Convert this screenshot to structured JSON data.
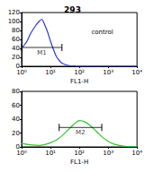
{
  "chart_data": [
    {
      "type": "line",
      "title": "293",
      "log": "x",
      "grid": false,
      "color": "#2a3bd0",
      "x_label": "FL1-H",
      "x": [
        1,
        1.5,
        2,
        3,
        4,
        5,
        6,
        8,
        10,
        13,
        16,
        20,
        25,
        32,
        40,
        50,
        63,
        80,
        100,
        200,
        500,
        1000,
        10000
      ],
      "values": [
        40,
        55,
        72,
        90,
        100,
        105,
        96,
        76,
        56,
        36,
        22,
        13,
        7,
        4,
        2,
        1,
        1,
        0,
        0,
        0,
        0,
        0,
        0
      ],
      "xlim": [
        1,
        10000
      ],
      "xticks": [
        {
          "value": 1,
          "label": "10⁰"
        },
        {
          "value": 10,
          "label": "10¹"
        },
        {
          "value": 100,
          "label": "10²"
        },
        {
          "value": 1000,
          "label": "10³"
        },
        {
          "value": 10000,
          "label": "10⁴"
        }
      ],
      "ylim": [
        0,
        120
      ],
      "yticks": [
        0,
        20,
        40,
        60,
        80,
        100,
        120
      ],
      "gates": [
        {
          "label": "M1",
          "range": [
            1,
            25
          ]
        }
      ],
      "annotations": [
        "control"
      ]
    },
    {
      "type": "line",
      "log": "x",
      "grid": false,
      "color": "#33c233",
      "x_label": "FL1-H",
      "x": [
        1,
        2,
        4,
        6,
        10,
        16,
        25,
        40,
        63,
        100,
        160,
        250,
        400,
        630,
        1000,
        1600,
        2500,
        4000,
        10000
      ],
      "values": [
        5,
        3,
        2,
        3,
        6,
        10,
        16,
        24,
        32,
        38,
        36,
        30,
        22,
        14,
        8,
        4,
        2,
        1,
        0
      ],
      "xlim": [
        1,
        10000
      ],
      "xticks": [
        {
          "value": 1,
          "label": "10⁰"
        },
        {
          "value": 10,
          "label": "10¹"
        },
        {
          "value": 100,
          "label": "10²"
        },
        {
          "value": 1000,
          "label": "10³"
        },
        {
          "value": 10000,
          "label": "10⁴"
        }
      ],
      "ylim": [
        0,
        80
      ],
      "yticks": [
        0,
        20,
        40,
        60,
        80
      ],
      "gates": [
        {
          "label": "M2",
          "range": [
            20,
            600
          ]
        }
      ]
    }
  ]
}
